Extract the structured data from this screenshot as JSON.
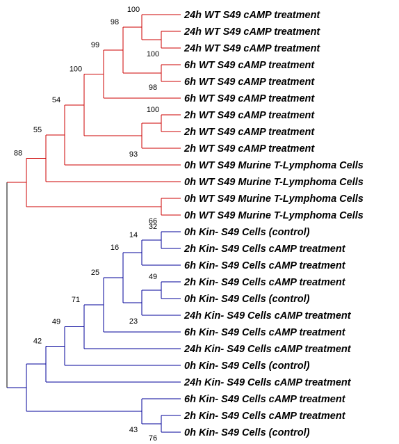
{
  "colors": {
    "red_clade": "#cc0000",
    "blue_clade": "#000099",
    "root": "#000000"
  },
  "tree": {
    "leaves": [
      {
        "id": "L0",
        "label": "24h WT S49 cAMP treatment"
      },
      {
        "id": "L1",
        "label": "24h WT S49 cAMP treatment"
      },
      {
        "id": "L2",
        "label": "24h WT S49 cAMP treatment"
      },
      {
        "id": "L3",
        "label": "6h WT S49 cAMP treatment"
      },
      {
        "id": "L4",
        "label": "6h WT S49 cAMP treatment"
      },
      {
        "id": "L5",
        "label": "6h WT S49 cAMP treatment"
      },
      {
        "id": "L6",
        "label": "2h WT S49 cAMP treatment"
      },
      {
        "id": "L7",
        "label": "2h WT S49 cAMP treatment"
      },
      {
        "id": "L8",
        "label": "2h WT S49 cAMP treatment"
      },
      {
        "id": "L9",
        "label": "0h WT S49 Murine T-Lymphoma Cells"
      },
      {
        "id": "L10",
        "label": "0h WT S49 Murine T-Lymphoma Cells"
      },
      {
        "id": "L11",
        "label": "0h WT S49 Murine T-Lymphoma Cells"
      },
      {
        "id": "L12",
        "label": "0h WT S49 Murine T-Lymphoma Cells"
      },
      {
        "id": "L13",
        "label": "0h Kin- S49 Cells (control)"
      },
      {
        "id": "L14",
        "label": "2h Kin- S49 Cells cAMP treatment"
      },
      {
        "id": "L15",
        "label": "6h Kin- S49 Cells cAMP treatment"
      },
      {
        "id": "L16",
        "label": "2h Kin- S49 Cells cAMP treatment"
      },
      {
        "id": "L17",
        "label": "0h Kin- S49 Cells (control)"
      },
      {
        "id": "L18",
        "label": "24h Kin- S49 Cells cAMP treatment"
      },
      {
        "id": "L19",
        "label": "6h Kin- S49 Cells cAMP treatment"
      },
      {
        "id": "L20",
        "label": "24h Kin- S49 Cells cAMP treatment"
      },
      {
        "id": "L21",
        "label": "0h Kin- S49 Cells (control)"
      },
      {
        "id": "L22",
        "label": "24h Kin- S49 Cells cAMP treatment"
      },
      {
        "id": "L23",
        "label": "6h Kin- S49 Cells cAMP treatment"
      },
      {
        "id": "L24",
        "label": "2h Kin- S49 Cells cAMP treatment"
      },
      {
        "id": "L25",
        "label": "0h Kin- S49 Cells (control)"
      }
    ],
    "support_values": [
      "100",
      "100",
      "98",
      "98",
      "99",
      "100",
      "100",
      "93",
      "54",
      "55",
      "66",
      "88",
      "32",
      "14",
      "16",
      "49",
      "23",
      "25",
      "71",
      "49",
      "42",
      "43",
      "76"
    ]
  }
}
